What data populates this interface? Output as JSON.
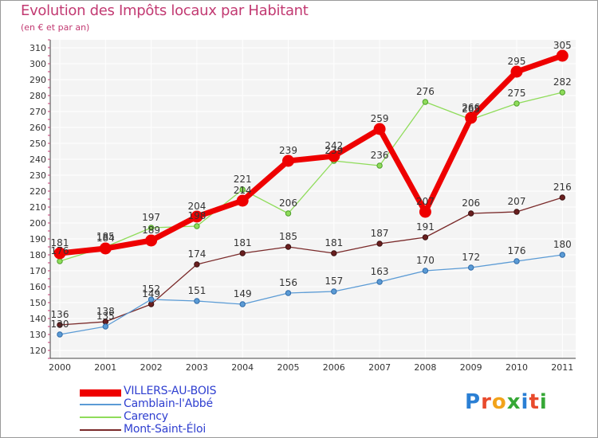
{
  "header": {
    "title": "Evolution des Impôts locaux par Habitant",
    "subtitle": "(en € et par an)"
  },
  "colors": {
    "title": "#c23a72",
    "legend_text": "#2f3fd0",
    "plot_bg": "#f4f4f4",
    "grid": "#ffffff"
  },
  "chart_data": {
    "type": "line",
    "title": "Evolution des Impôts locaux par Habitant",
    "subtitle": "(en € et par an)",
    "xlabel": "",
    "ylabel": "",
    "x": [
      "2000",
      "2001",
      "2002",
      "2003",
      "2004",
      "2005",
      "2006",
      "2007",
      "2008",
      "2009",
      "2010",
      "2011"
    ],
    "ylim": [
      120,
      310
    ],
    "yticks": [
      120,
      130,
      140,
      150,
      160,
      170,
      180,
      190,
      200,
      210,
      220,
      230,
      240,
      250,
      260,
      270,
      280,
      290,
      300,
      310
    ],
    "grid": true,
    "legend_position": "bottom-left",
    "series": [
      {
        "name": "Mont-Saint-Éloi",
        "color": "#7a2a2a",
        "values": [
          136,
          138,
          149,
          174,
          181,
          185,
          181,
          187,
          191,
          206,
          207,
          216
        ]
      },
      {
        "name": "Camblain-l'Abbé",
        "color": "#5b9bd5",
        "values": [
          130,
          135,
          152,
          151,
          149,
          156,
          157,
          163,
          170,
          172,
          176,
          180
        ]
      },
      {
        "name": "Carency",
        "color": "#8fdc5a",
        "values": [
          176,
          185,
          197,
          198,
          221,
          206,
          239,
          236,
          276,
          265,
          275,
          282
        ]
      },
      {
        "name": "VILLERS-AU-BOIS",
        "color": "#ee0000",
        "values": [
          181,
          184,
          189,
          204,
          214,
          239,
          242,
          259,
          207,
          266,
          295,
          305
        ]
      }
    ]
  },
  "legend": {
    "items": [
      {
        "label": "VILLERS-AU-BOIS",
        "color": "#ee0000"
      },
      {
        "label": "Camblain-l'Abbé",
        "color": "#5b9bd5"
      },
      {
        "label": "Carency",
        "color": "#8fdc5a"
      },
      {
        "label": "Mont-Saint-Éloi",
        "color": "#7a2a2a"
      }
    ]
  },
  "logo": {
    "text": "Proxiti",
    "colors": [
      "#2a7fd4",
      "#e84a2c",
      "#f2a31a",
      "#36a836",
      "#2a7fd4",
      "#e84a2c",
      "#36a836"
    ]
  }
}
